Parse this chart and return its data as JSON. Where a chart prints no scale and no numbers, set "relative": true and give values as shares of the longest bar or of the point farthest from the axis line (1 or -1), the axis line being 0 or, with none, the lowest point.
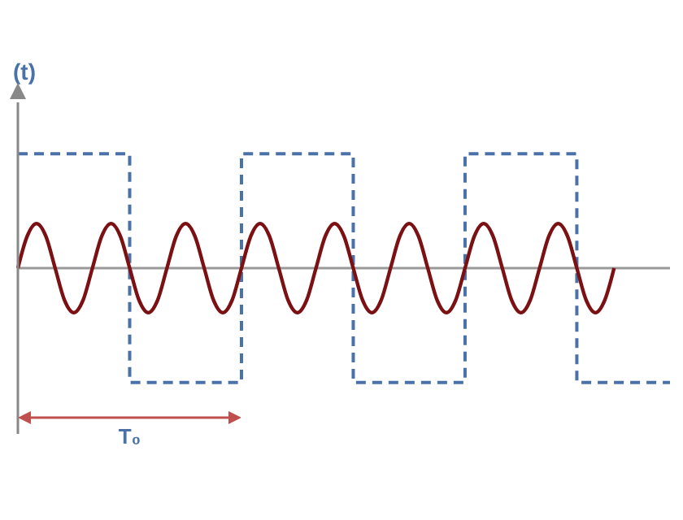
{
  "chart_data": {
    "type": "line",
    "relative": true,
    "ylabel": "(t)",
    "grid": false,
    "legend": false,
    "categories": [
      null,
      null,
      null,
      null,
      null,
      null,
      null,
      null,
      null,
      null,
      null,
      null,
      null,
      null,
      null,
      null,
      null,
      null,
      null,
      null,
      null,
      null,
      null,
      null,
      null,
      null,
      null,
      null,
      null,
      null,
      null,
      null,
      null,
      null,
      null,
      null,
      null,
      null,
      null,
      null,
      null,
      null,
      null,
      null,
      null,
      null,
      null,
      null,
      null,
      null,
      null,
      null,
      null,
      null,
      null,
      null,
      null,
      null,
      null,
      null,
      null,
      null,
      null,
      null,
      null,
      null,
      null,
      null,
      null,
      null,
      null
    ],
    "annotations": [
      "T₀"
    ],
    "series": [
      {
        "type": "step",
        "color": "#4a72a8",
        "line_style": "dashed",
        "values": [
          1,
          1,
          1,
          1,
          1,
          1,
          1,
          1,
          1,
          1,
          1,
          1,
          -1,
          -1,
          -1,
          -1,
          -1,
          -1,
          -1,
          -1,
          -1,
          -1,
          -1,
          -1,
          1,
          1,
          1,
          1,
          1,
          1,
          1,
          1,
          1,
          1,
          1,
          1,
          -1,
          -1,
          -1,
          -1,
          -1,
          -1,
          -1,
          -1,
          -1,
          -1,
          -1,
          -1,
          1,
          1,
          1,
          1,
          1,
          1,
          1,
          1,
          1,
          1,
          1,
          1,
          -1,
          -1,
          -1,
          -1,
          -1,
          -1,
          -1,
          -1,
          -1,
          -1,
          -1
        ]
      },
      {
        "color": "#7b1113",
        "line_style": "solid",
        "values": [
          0,
          0.28,
          0.39,
          0.28,
          0,
          -0.28,
          -0.39,
          -0.28,
          0,
          0.28,
          0.39,
          0.28,
          0,
          -0.28,
          -0.39,
          -0.28,
          0,
          0.28,
          0.39,
          0.28,
          0,
          -0.28,
          -0.39,
          -0.28,
          0,
          0.28,
          0.39,
          0.28,
          0,
          -0.28,
          -0.39,
          -0.28,
          0,
          0.28,
          0.39,
          0.28,
          0,
          -0.28,
          -0.39,
          -0.28,
          0,
          0.28,
          0.39,
          0.28,
          0,
          -0.28,
          -0.39,
          -0.28,
          0,
          0.28,
          0.39,
          0.28,
          0,
          -0.28,
          -0.39,
          -0.28,
          0,
          0.28,
          0.39,
          0.28,
          0,
          -0.28,
          -0.39,
          -0.28,
          0,
          null,
          null,
          null,
          null,
          null,
          null
        ]
      }
    ]
  }
}
